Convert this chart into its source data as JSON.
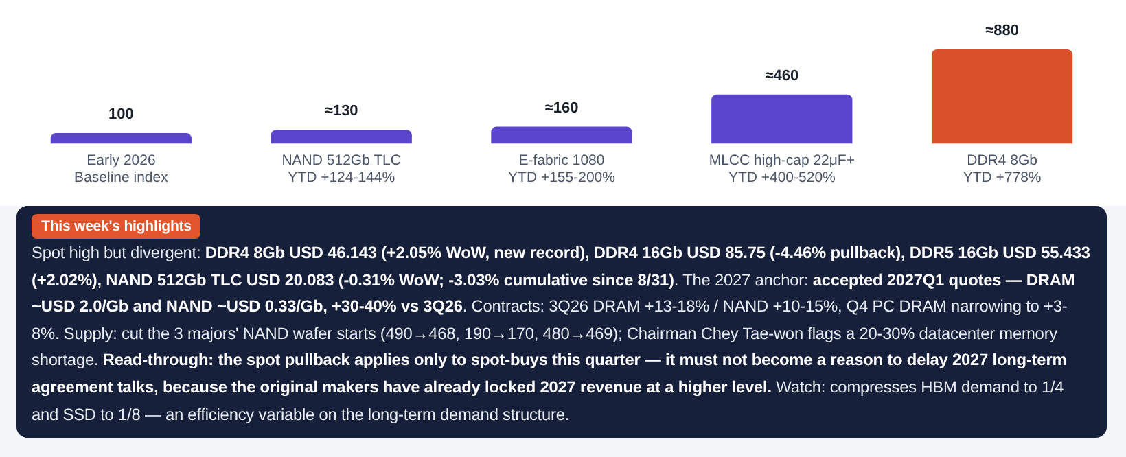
{
  "chart_data": {
    "type": "bar",
    "categories": [
      "Early 2026\nBaseline index",
      "NAND 512Gb TLC\nYTD +124-144%",
      "E-fabric 1080\nYTD +155-200%",
      "MLCC high-cap 22μF+\nYTD +400-520%",
      "DDR4 8Gb\nYTD +778%"
    ],
    "values": [
      100,
      130,
      160,
      460,
      880
    ],
    "colors": [
      "#5b45cc",
      "#5b45cc",
      "#5b45cc",
      "#5b45cc",
      "#d9502a"
    ],
    "value_labels": [
      "100",
      "≈130",
      "≈160",
      "≈460",
      "≈880"
    ],
    "grid": false,
    "legend": false,
    "tick_labels": "x",
    "annotations": [
      "This week's highlights",
      "Spot high but divergent: ",
      "DDR4 8Gb USD 46.143 (+2.05% WoW, new record), DDR4 16Gb USD 85.75 (-4.46% pullback), DDR5 16Gb USD 55.433 (+2.02%), NAND 512Gb TLC USD 20.083 (-0.31% WoW; -3.03% cumulative since 8/31)",
      ". The 2027 anchor: ",
      "accepted 2027Q1 quotes — DRAM ~USD 2.0/Gb and NAND ~USD 0.33/Gb, +30-40% vs 3Q26",
      ". Contracts: 3Q26 DRAM +13-18% / NAND +10-15%, Q4 PC DRAM narrowing to +3-8%. Supply: cut the 3 majors' NAND wafer starts (490→468, 190→170, 480→469); Chairman Chey Tae-won flags a 20-30% datacenter memory shortage. ",
      "Read-through: the spot pullback applies only to spot-buys this quarter — it must not become a reason to delay 2027 long-term agreement talks, because the original makers have already locked 2027 revenue at a higher level.",
      " Watch: compresses HBM demand to 1/4 and SSD to 1/8 — an efficiency variable on the long-term demand structure."
    ]
  }
}
